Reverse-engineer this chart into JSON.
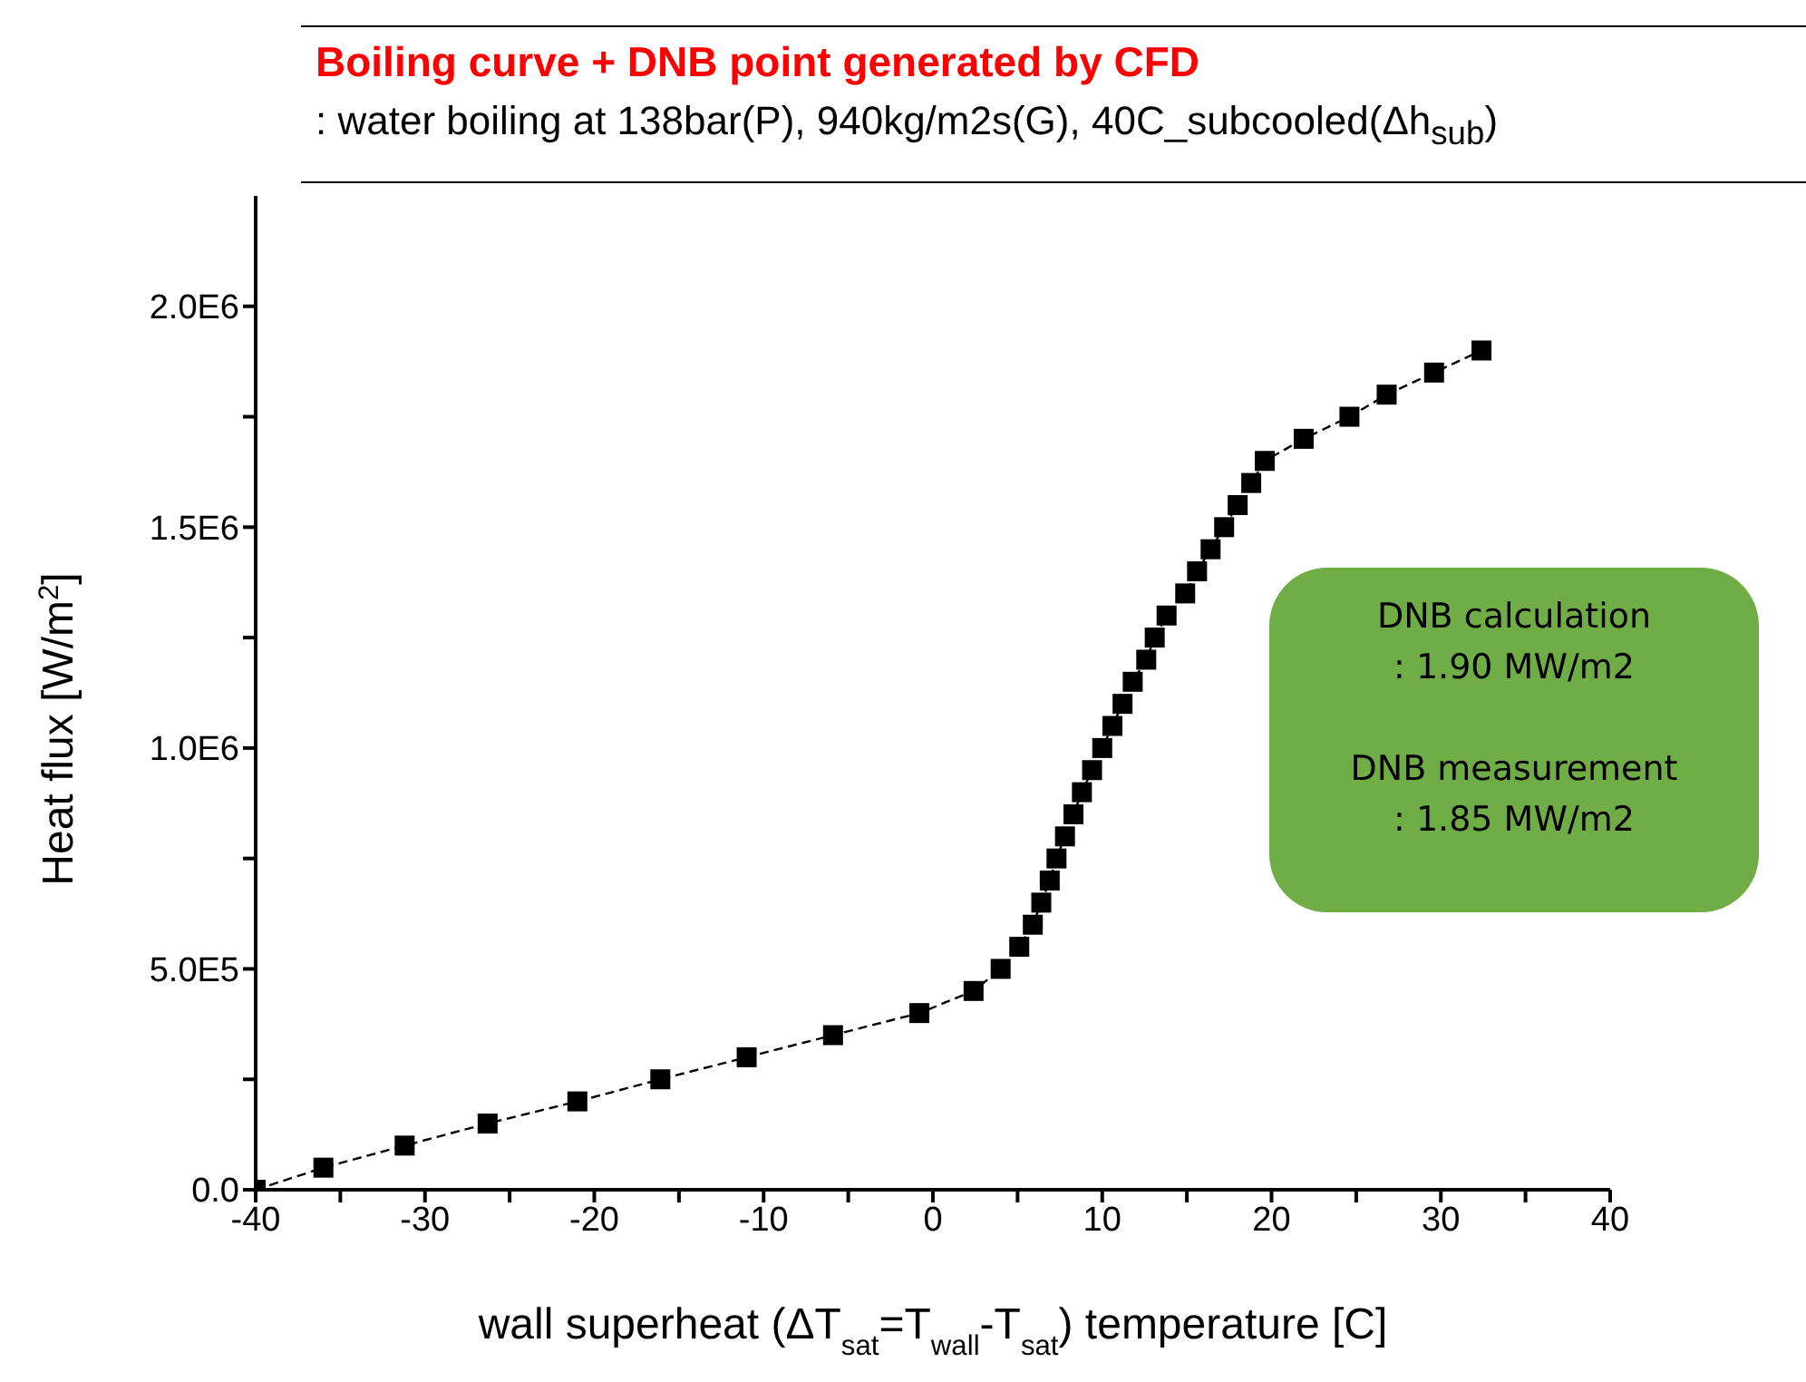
{
  "chart_data": {
    "type": "line",
    "title": "Boiling curve + DNB point generated by CFD",
    "subtitle": ": water boiling at 138bar(P), 940kg/m2s(G), 40C_subcooled(Δh$_{sub}$)",
    "xlabel": "wall superheat (ΔT$_{sat}$=T$_{wall}$-T$_{sat}$) temperature [C]",
    "ylabel": "Heat flux [W/m$^{2}$]",
    "annotations": [
      "DNB calculation",
      ": 1.90 MW/m2",
      "DNB measurement",
      ": 1.85 MW/m2"
    ],
    "x": [
      -40,
      -36,
      -31.2,
      -26.3,
      -21,
      -16.1,
      -11,
      -5.9,
      -0.8,
      2.4,
      4.0,
      5.1,
      5.9,
      6.4,
      6.9,
      7.3,
      7.8,
      8.3,
      8.8,
      9.4,
      10.0,
      10.6,
      11.2,
      11.8,
      12.6,
      13.1,
      13.8,
      14.9,
      15.6,
      16.4,
      17.2,
      18.0,
      18.8,
      19.6,
      21.9,
      24.6,
      26.8,
      29.6,
      32.4
    ],
    "series": [
      {
        "color": "#000000",
        "values": [
          0,
          50000,
          100000,
          150000,
          200000,
          250000,
          300000,
          350000,
          400000,
          450000,
          500000,
          550000,
          600000,
          650000,
          700000,
          750000,
          800000,
          850000,
          900000,
          950000,
          1000000,
          1050000,
          1100000,
          1150000,
          1200000,
          1250000,
          1300000,
          1350000,
          1400000,
          1450000,
          1500000,
          1550000,
          1600000,
          1650000,
          1700000,
          1750000,
          1800000,
          1850000,
          1900000
        ]
      }
    ],
    "marker": "square",
    "line_style": "dashed",
    "grid": false,
    "legend": false,
    "xlim": [
      -40,
      40
    ],
    "ylim": [
      0,
      2250000
    ],
    "xticks": [
      -40,
      {
        "value": -35,
        "label": null
      },
      -30,
      {
        "value": -25,
        "label": null
      },
      -20,
      {
        "value": -15,
        "label": null
      },
      -10,
      {
        "value": -5,
        "label": null
      },
      0,
      {
        "value": 5,
        "label": null
      },
      10,
      {
        "value": 15,
        "label": null
      },
      20,
      {
        "value": 25,
        "label": null
      },
      30,
      {
        "value": 35,
        "label": null
      },
      40
    ],
    "yticks": [
      {
        "value": 0,
        "label": "0.0"
      },
      {
        "value": 250000,
        "label": null
      },
      {
        "value": 500000,
        "label": "5.0E5"
      },
      {
        "value": 750000,
        "label": null
      },
      {
        "value": 1000000,
        "label": "1.0E6"
      },
      {
        "value": 1250000,
        "label": null
      },
      {
        "value": 1500000,
        "label": "1.5E6"
      },
      {
        "value": 1750000,
        "label": null
      },
      {
        "value": 2000000,
        "label": "2.0E6"
      }
    ]
  }
}
